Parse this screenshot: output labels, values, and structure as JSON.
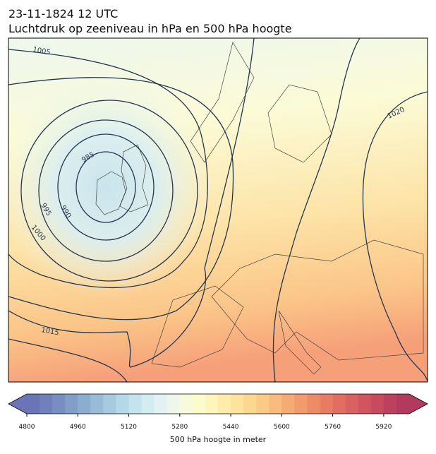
{
  "title": "23-11-1824 12 UTC",
  "subtitle": "Luchtdruk op zeeniveau in hPa en 500 hPa hoogte",
  "contour_labels": [
    "1005",
    "985",
    "990",
    "995",
    "1000",
    "1015",
    "1020"
  ],
  "colorbar": {
    "label": "500 hPa hoogte in meter",
    "range": [
      4800,
      6000
    ],
    "ticks": [
      4800,
      4960,
      5120,
      5280,
      5440,
      5600,
      5760,
      5920
    ],
    "colormap": [
      "#6b74b4",
      "#717fba",
      "#788ec2",
      "#819dc8",
      "#8badcf",
      "#98bcd7",
      "#a6cbe0",
      "#b5d8e8",
      "#c4e3ee",
      "#d3ecf2",
      "#e2f2f2",
      "#eef7ea",
      "#f7fadb",
      "#fcfbcb",
      "#fef5bb",
      "#feedaa",
      "#fde39c",
      "#fcd790",
      "#fbca86",
      "#f9bb7d",
      "#f6ab74",
      "#f29b6d",
      "#ee8b67",
      "#e87c63",
      "#e16e61",
      "#d9615f",
      "#d0555e",
      "#c74a5e",
      "#bd415e",
      "#b23a5e"
    ]
  }
}
